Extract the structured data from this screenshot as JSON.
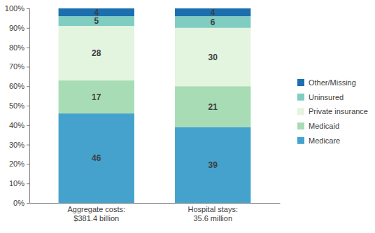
{
  "chart_data": {
    "type": "bar",
    "stacked": true,
    "data_labels": true,
    "grid": false,
    "legend": "right",
    "categories": [
      "Aggregate costs: $381.4 billion",
      "Hospital stays: 35.6 million"
    ],
    "series": [
      {
        "name": "Medicare",
        "color": "#44a2cd",
        "values": [
          46,
          39
        ]
      },
      {
        "name": "Medicaid",
        "color": "#a8dcb4",
        "values": [
          17,
          21
        ]
      },
      {
        "name": "Private insurance",
        "color": "#e3f4df",
        "values": [
          28,
          30
        ]
      },
      {
        "name": "Uninsured",
        "color": "#80cdc2",
        "values": [
          5,
          6
        ]
      },
      {
        "name": "Other/Missing",
        "color": "#1b6fae",
        "values": [
          4,
          4
        ]
      }
    ],
    "ylim": [
      0,
      100
    ],
    "yticks": [
      {
        "value": 0,
        "label": "0%"
      },
      {
        "value": 10,
        "label": "10%"
      },
      {
        "value": 20,
        "label": "20%"
      },
      {
        "value": 30,
        "label": "30%"
      },
      {
        "value": 40,
        "label": "40%"
      },
      {
        "value": 50,
        "label": "50%"
      },
      {
        "value": 60,
        "label": "60%"
      },
      {
        "value": 70,
        "label": "70%"
      },
      {
        "value": 80,
        "label": "80%"
      },
      {
        "value": 90,
        "label": "90%"
      },
      {
        "value": 100,
        "label": "100%"
      }
    ]
  }
}
